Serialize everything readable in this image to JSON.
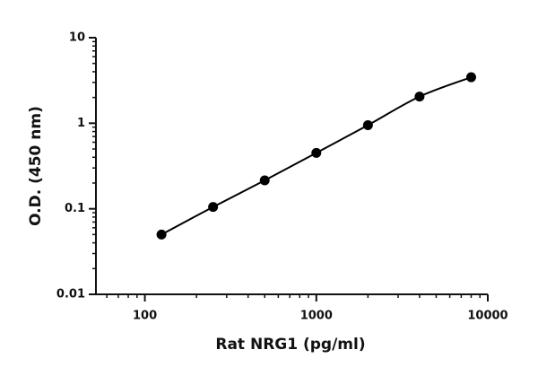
{
  "chart_data": {
    "type": "scatter",
    "xlabel": "Rat NRG1 (pg/ml)",
    "ylabel": "O.D. (450 nm)",
    "log_x": true,
    "log_y": true,
    "fit_line": true,
    "xlim": [
      50,
      10000
    ],
    "ylim": [
      0.01,
      10
    ],
    "xticks": [
      100,
      1000,
      10000
    ],
    "yticks": [
      0.01,
      0.1,
      1,
      10
    ],
    "xminorticks": [
      50,
      60,
      70,
      80,
      90,
      200,
      300,
      400,
      500,
      600,
      700,
      800,
      900,
      2000,
      3000,
      4000,
      5000,
      6000,
      7000,
      8000,
      9000
    ],
    "yminorticks": [
      0.02,
      0.03,
      0.04,
      0.05,
      0.06,
      0.07,
      0.08,
      0.09,
      0.2,
      0.3,
      0.4,
      0.5,
      0.6,
      0.7,
      0.8,
      0.9,
      2,
      3,
      4,
      5,
      6,
      7,
      8,
      9
    ],
    "series": [
      {
        "color": "#000000",
        "x": [
          125,
          250,
          500,
          1000,
          2000,
          4000,
          8000
        ],
        "values": [
          0.05,
          0.105,
          0.215,
          0.45,
          0.95,
          2.05,
          3.45
        ]
      }
    ]
  }
}
